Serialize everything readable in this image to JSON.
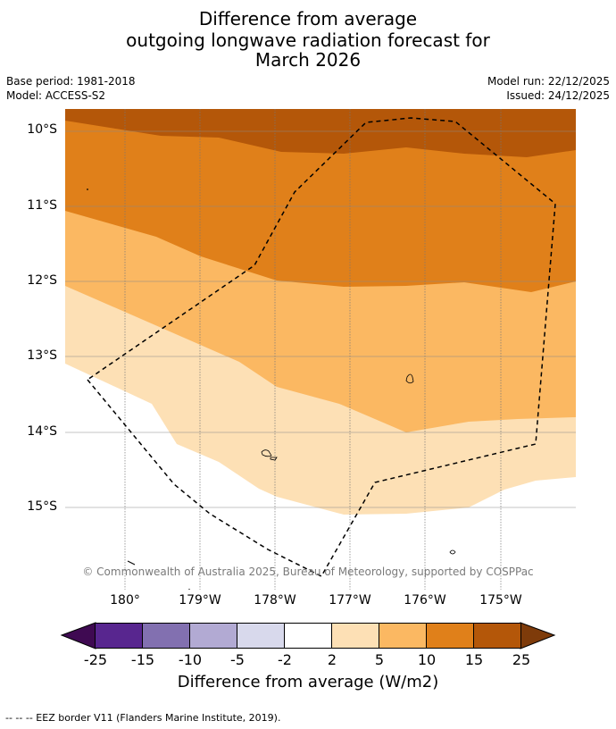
{
  "title_lines": [
    "Difference from average",
    "outgoing longwave radiation forecast for",
    "March 2026"
  ],
  "meta": {
    "base_period": "Base period: 1981-2018",
    "model": "Model: ACCESS-S2",
    "model_run": "Model run: 22/12/2025",
    "issued": "Issued: 24/12/2025"
  },
  "lat_labels": [
    "10°S",
    "11°S",
    "12°S",
    "13°S",
    "14°S",
    "15°S"
  ],
  "lon_labels": [
    "180°",
    "179°W",
    "178°W",
    "177°W",
    "176°W",
    "175°W"
  ],
  "copyright": "© Commonwealth of Australia 2025, Bureau of Meteorology, supported by COSPPac",
  "colorbar": {
    "ticks": [
      "-25",
      "-15",
      "-10",
      "-5",
      "-2",
      "2",
      "5",
      "10",
      "15",
      "25"
    ],
    "colors": [
      "#3f0a52",
      "#58268f",
      "#8270b0",
      "#b2aad3",
      "#d8d9ec",
      "#ffffff",
      "#fde0b5",
      "#fbb862",
      "#e0801a",
      "#b45709",
      "#7e3b0a"
    ],
    "label": "Difference from average (W/m2)"
  },
  "footer": "--  --  -- EEZ border V11 (Flanders Marine Institute, 2019)."
}
